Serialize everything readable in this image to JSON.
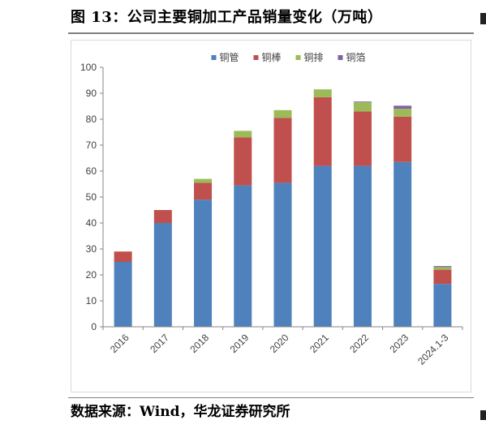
{
  "title": "图 13：公司主要铜加工产品销量变化（万吨）",
  "source": "数据来源：Wind，华龙证券研究所",
  "chart_data": {
    "type": "bar",
    "stacked": true,
    "categories": [
      "2016",
      "2017",
      "2018",
      "2019",
      "2020",
      "2021",
      "2022",
      "2023",
      "2024.1-3"
    ],
    "series": [
      {
        "name": "铜管",
        "color": "#4f81bd",
        "values": [
          25,
          40,
          49,
          54.5,
          55.5,
          62,
          62,
          63.5,
          16.5
        ]
      },
      {
        "name": "铜棒",
        "color": "#c0504d",
        "values": [
          4,
          5,
          6.5,
          18.5,
          25,
          26.5,
          21,
          17.5,
          5.5
        ]
      },
      {
        "name": "铜排",
        "color": "#9bbb59",
        "values": [
          0,
          0,
          1.5,
          2.5,
          3,
          3,
          3.5,
          3,
          1
        ]
      },
      {
        "name": "铜箔",
        "color": "#8064a2",
        "values": [
          0,
          0,
          0,
          0,
          0,
          0,
          0.3,
          1.2,
          0.4
        ]
      }
    ],
    "ylim": [
      0,
      100
    ],
    "yticks": [
      0,
      10,
      20,
      30,
      40,
      50,
      60,
      70,
      80,
      90,
      100
    ],
    "legend_position": "top-center",
    "grid": false
  }
}
